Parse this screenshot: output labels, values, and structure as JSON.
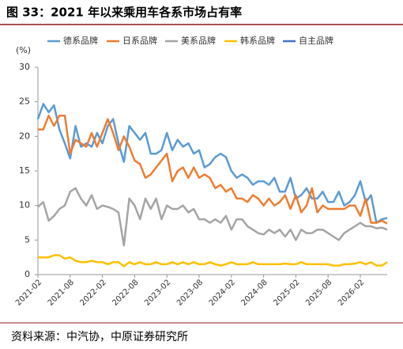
{
  "chart_data": {
    "type": "line",
    "title": "图 33：2021 年以来乘用车各系市场占有率",
    "y_unit": "(%)",
    "source": "资料来源：中汽协，中原证券研究所",
    "x": [
      "2021-02",
      null,
      null,
      null,
      null,
      null,
      "2021-08",
      null,
      null,
      null,
      null,
      null,
      "2022-02",
      null,
      null,
      null,
      null,
      null,
      "2022-08",
      null,
      null,
      null,
      null,
      null,
      "2023-02",
      null,
      null,
      null,
      null,
      null,
      "2023-08",
      null,
      null,
      null,
      null,
      null,
      "2024-02",
      null,
      null,
      null,
      null,
      null,
      "2024-08",
      null,
      null,
      null,
      null,
      null,
      "2025-02",
      null,
      null,
      null,
      null,
      null,
      "2025-08",
      null,
      null,
      null,
      null,
      null,
      "2026-02",
      null,
      null,
      null,
      null,
      null
    ],
    "ylim": [
      0,
      30
    ],
    "yticks": [
      0,
      5,
      10,
      15,
      20,
      25,
      30
    ],
    "series": [
      {
        "name": "德系品牌",
        "color": "#5b9bd5",
        "values": [
          22.5,
          24.7,
          23.5,
          24.5,
          21,
          19,
          16.8,
          21.5,
          18.5,
          19,
          18.5,
          20.5,
          19,
          21.5,
          22.5,
          19,
          16.3,
          21.5,
          20.5,
          19.5,
          20.5,
          17.5,
          17.5,
          18,
          20.5,
          18,
          19.5,
          18.5,
          19,
          17.5,
          18,
          15.5,
          16,
          17,
          17.5,
          17,
          15,
          14,
          14.5,
          14,
          13,
          13.5,
          13.5,
          13,
          14,
          12,
          12,
          14,
          11,
          11.5,
          12.5,
          11,
          11,
          12,
          10.5,
          10.5,
          12,
          10,
          10.5,
          11.5,
          13.5,
          10.5,
          11.5,
          7.5,
          8,
          8.2
        ]
      },
      {
        "name": "日系品牌",
        "color": "#ed7d31",
        "values": [
          21,
          21,
          23,
          21.5,
          23,
          23,
          17.5,
          19.5,
          19,
          18.5,
          20.5,
          18.5,
          20.5,
          22.5,
          20.5,
          18,
          20,
          18.5,
          16.5,
          16,
          14,
          14.5,
          15.5,
          16.5,
          17.5,
          13.5,
          15,
          15.5,
          14,
          15.5,
          14,
          14.5,
          14,
          12.5,
          13,
          12,
          12.5,
          11,
          11,
          10.5,
          11.5,
          11,
          10,
          11,
          10,
          10.5,
          11.5,
          9.5,
          11.5,
          9,
          10,
          12.5,
          9,
          10,
          9.5,
          9.5,
          9.5,
          9.5,
          10,
          10,
          8.5,
          11,
          7.5,
          7.5,
          7.8,
          7.4
        ]
      },
      {
        "name": "美系品牌",
        "color": "#a5a5a5",
        "values": [
          9.8,
          10.5,
          7.8,
          8.5,
          9.5,
          10,
          12,
          12.5,
          11,
          10,
          11.5,
          9.5,
          10,
          9.8,
          9.5,
          9,
          4.2,
          11,
          10,
          8,
          11,
          9.5,
          11,
          8,
          10,
          9.5,
          9.5,
          10,
          9,
          9.5,
          8,
          8,
          7.5,
          8,
          7.5,
          8.5,
          6.5,
          8,
          8,
          7,
          6.5,
          6,
          5.8,
          6.5,
          6,
          6.5,
          5.5,
          6.5,
          5,
          6.5,
          6,
          6,
          6.5,
          6.5,
          6,
          5.5,
          5,
          6,
          6.5,
          7,
          7.5,
          7,
          7,
          6.7,
          6.8,
          6.5
        ]
      },
      {
        "name": "韩系品牌",
        "color": "#ffc000",
        "values": [
          2.5,
          2.5,
          2.5,
          2.8,
          2.8,
          2.3,
          2.5,
          2,
          1.8,
          1.8,
          2,
          1.8,
          1.8,
          1.5,
          1.8,
          1.8,
          1.2,
          1.8,
          1.5,
          1.8,
          1.5,
          1.5,
          1.8,
          1.5,
          1.5,
          1.8,
          1.5,
          1.8,
          1.5,
          1.8,
          1.5,
          1.5,
          1.8,
          1.5,
          1.3,
          1.5,
          1.8,
          1.5,
          1.5,
          1.5,
          1.8,
          1.5,
          1.5,
          1.5,
          1.5,
          1.5,
          1.6,
          1.5,
          1.5,
          1.8,
          1.5,
          1.5,
          1.5,
          1.5,
          1.5,
          1.3,
          1.3,
          1.5,
          1.5,
          1.6,
          1.8,
          1.5,
          1.8,
          1.3,
          1.3,
          1.8
        ]
      },
      {
        "name": "自主品牌",
        "color": "#4472c4",
        "values": [
          null,
          null,
          null,
          null,
          null,
          null,
          null,
          null,
          null,
          null,
          null,
          null,
          null,
          null,
          null,
          null,
          null,
          null,
          null,
          null,
          null,
          null,
          null,
          null,
          null,
          null,
          null,
          null,
          null,
          null,
          null,
          null,
          null,
          null,
          null,
          null,
          null,
          null,
          null,
          null,
          null,
          null,
          null,
          null,
          null,
          null,
          null,
          null,
          null,
          null,
          null,
          null,
          null,
          null,
          null,
          null,
          null,
          null,
          null,
          null,
          null,
          null,
          null,
          null,
          null,
          null
        ]
      }
    ]
  }
}
